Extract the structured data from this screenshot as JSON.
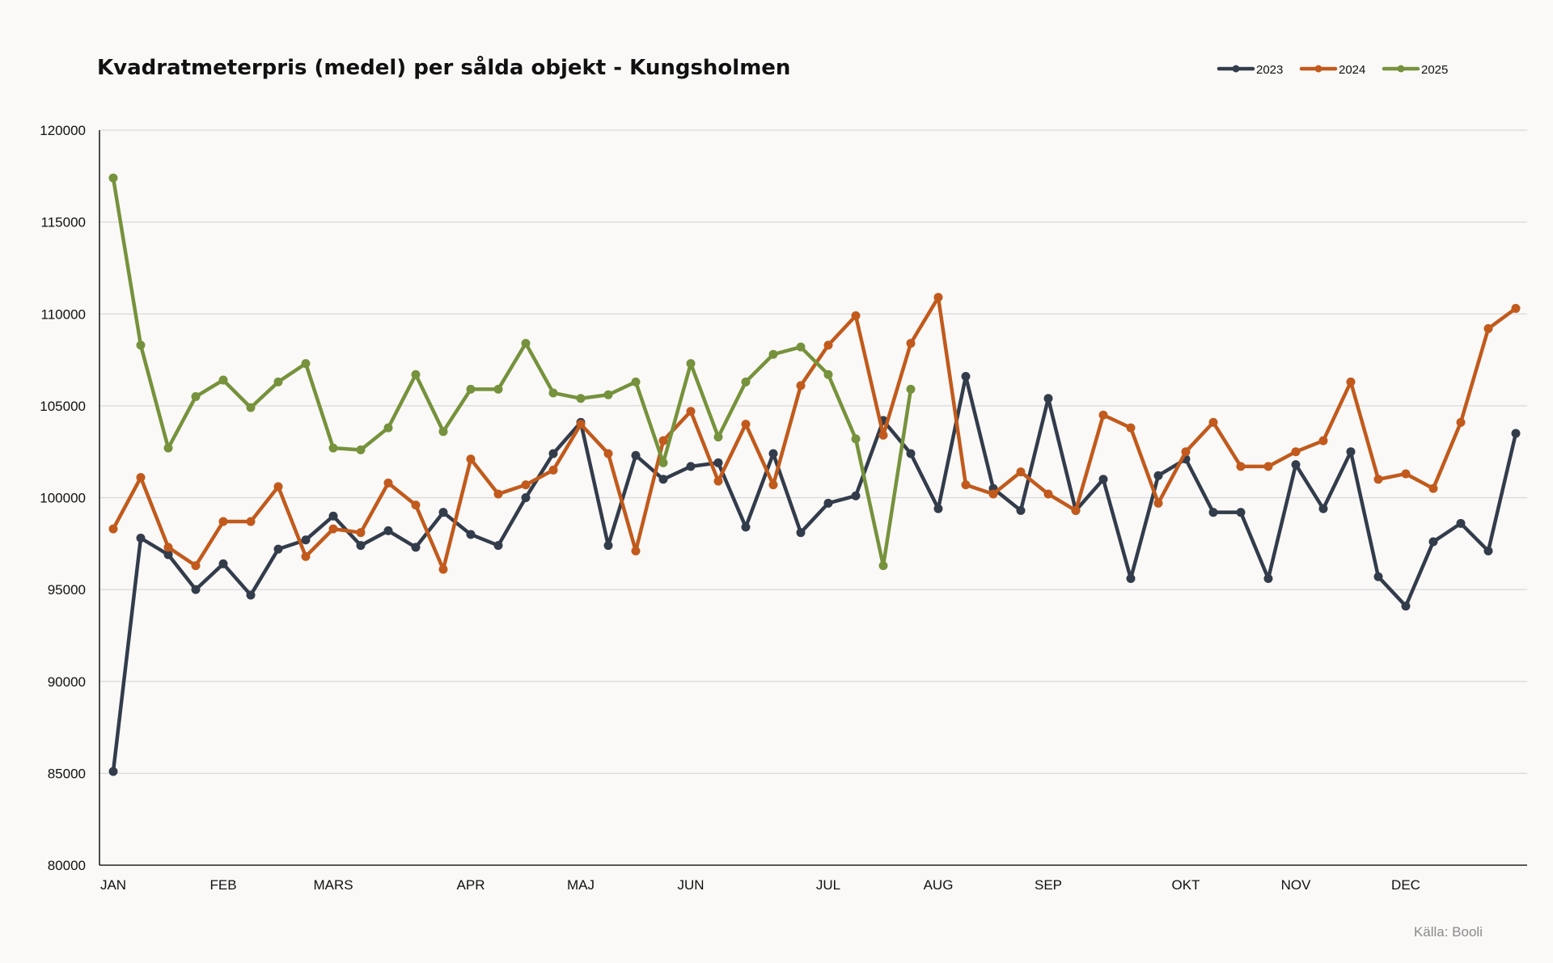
{
  "chart_data": {
    "type": "line",
    "title": "Kvadratmeterpris (medel) per sålda objekt - Kungsholmen",
    "source": "Källa: Booli",
    "xlabel": "",
    "ylabel": "",
    "ylim": [
      80000,
      120000
    ],
    "yticks": [
      80000,
      85000,
      90000,
      95000,
      100000,
      105000,
      110000,
      115000,
      120000
    ],
    "x_points": 52,
    "month_labels": [
      {
        "label": "JAN",
        "index": 0
      },
      {
        "label": "FEB",
        "index": 4
      },
      {
        "label": "MARS",
        "index": 8
      },
      {
        "label": "APR",
        "index": 13
      },
      {
        "label": "MAJ",
        "index": 17
      },
      {
        "label": "JUN",
        "index": 21
      },
      {
        "label": "JUL",
        "index": 26
      },
      {
        "label": "AUG",
        "index": 30
      },
      {
        "label": "SEP",
        "index": 34
      },
      {
        "label": "OKT",
        "index": 39
      },
      {
        "label": "NOV",
        "index": 43
      },
      {
        "label": "DEC",
        "index": 47
      }
    ],
    "grid": true,
    "legend_position": "top-right",
    "series": [
      {
        "name": "2023",
        "color": "#333c4b",
        "values": [
          85100,
          97800,
          96900,
          95000,
          96400,
          94700,
          97200,
          97700,
          99000,
          97400,
          98200,
          97300,
          99200,
          98000,
          97400,
          100000,
          102400,
          104100,
          97400,
          102300,
          101000,
          101700,
          101900,
          98400,
          102400,
          98100,
          99700,
          100100,
          104200,
          102400,
          99400,
          106600,
          100500,
          99300,
          105400,
          99300,
          101000,
          95600,
          101200,
          102100,
          99200,
          99200,
          95600,
          101800,
          99400,
          102500,
          95700,
          94100,
          97600,
          98600,
          97100,
          103500
        ]
      },
      {
        "name": "2024",
        "color": "#c15a1c",
        "values": [
          98300,
          101100,
          97300,
          96300,
          98700,
          98700,
          100600,
          96800,
          98300,
          98100,
          100800,
          99600,
          96100,
          102100,
          100200,
          100700,
          101500,
          104000,
          102400,
          97100,
          103100,
          104700,
          100900,
          104000,
          100700,
          106100,
          108300,
          109900,
          103400,
          108400,
          110900,
          100700,
          100200,
          101400,
          100200,
          99300,
          104500,
          103800,
          99700,
          102500,
          104100,
          101700,
          101700,
          102500,
          103100,
          106300,
          101000,
          101300,
          100500,
          104100,
          109200,
          110300
        ]
      },
      {
        "name": "2025",
        "color": "#76923c",
        "values": [
          117400,
          108300,
          102700,
          105500,
          106400,
          104900,
          106300,
          107300,
          102700,
          102600,
          103800,
          106700,
          103600,
          105900,
          105900,
          108400,
          105700,
          105400,
          105600,
          106300,
          101900,
          107300,
          103300,
          106300,
          107800,
          108200,
          106700,
          103200,
          96300,
          105900
        ]
      }
    ]
  }
}
